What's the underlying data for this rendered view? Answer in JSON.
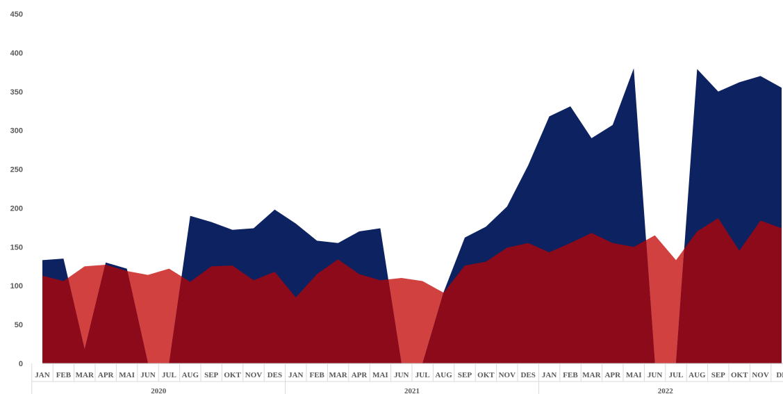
{
  "chart_data": {
    "type": "area",
    "title": "",
    "xlabel": "",
    "ylabel": "",
    "ylim": [
      0,
      450
    ],
    "yticks": [
      0,
      50,
      100,
      150,
      200,
      250,
      300,
      350,
      400,
      450
    ],
    "grid": false,
    "legend": "none",
    "month_labels": [
      "JAN",
      "FEB",
      "MAR",
      "APR",
      "MAI",
      "JUN",
      "JUL",
      "AUG",
      "SEP",
      "OKT",
      "NOV",
      "DES",
      "JAN",
      "FEB",
      "MAR",
      "APR",
      "MAI",
      "JUN",
      "JUL",
      "AUG",
      "SEP",
      "OKT",
      "NOV",
      "DES",
      "JAN",
      "FEB",
      "MAR",
      "APR",
      "MAI",
      "JUN",
      "JUL",
      "AUG",
      "SEP",
      "OKT",
      "NOV",
      "DE"
    ],
    "year_groups": [
      {
        "label": "2020",
        "months": 12
      },
      {
        "label": "2021",
        "months": 12
      },
      {
        "label": "2022",
        "months": 12
      }
    ],
    "series": [
      {
        "color": "#0d2260",
        "values": [
          133,
          135,
          18,
          130,
          122,
          0,
          0,
          190,
          182,
          172,
          174,
          198,
          180,
          158,
          155,
          170,
          174,
          0,
          0,
          92,
          162,
          176,
          202,
          255,
          318,
          331,
          290,
          307,
          380,
          0,
          0,
          379,
          350,
          362,
          370,
          355
        ]
      },
      {
        "color": "#d04140",
        "values": [
          113,
          106,
          125,
          127,
          119,
          114,
          122,
          105,
          125,
          126,
          107,
          118,
          85,
          115,
          134,
          115,
          107,
          110,
          106,
          91,
          126,
          131,
          149,
          155,
          143,
          155,
          168,
          155,
          150,
          165,
          133,
          170,
          187,
          145,
          184,
          174
        ]
      }
    ],
    "overlap_color": "#8c0a1a"
  }
}
